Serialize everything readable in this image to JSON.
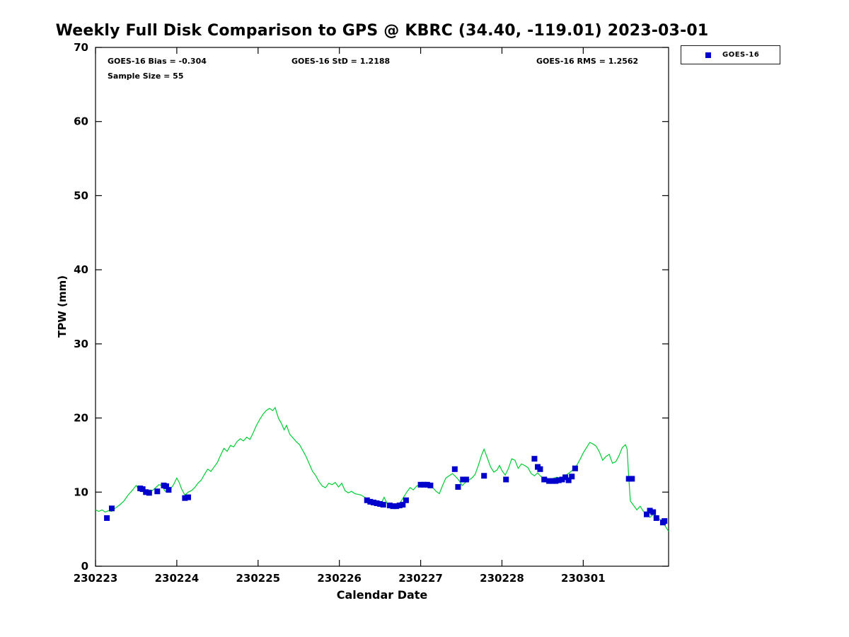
{
  "annotations": {
    "bias": "GOES-16 Bias = -0.304",
    "std": "GOES-16 StD = 1.2188",
    "rms": "GOES-16 RMS = 1.2562",
    "sample_size": "Sample Size = 55"
  },
  "legend": {
    "entries": [
      {
        "label": "GOES-16",
        "marker": "square",
        "color": "#0000cc"
      }
    ]
  },
  "chart_data": {
    "type": "line",
    "title": "Weekly Full Disk Comparison to GPS @ KBRC (34.40, -119.01) 2023-03-01",
    "xlabel": "Calendar Date",
    "ylabel": "TPW (mm)",
    "xlim": [
      0,
      7.05
    ],
    "ylim": [
      0,
      70
    ],
    "x_axis_unit": "days since 230223",
    "grid": false,
    "legend_position": "outside-top-right",
    "x_ticks": [
      {
        "value": 0,
        "label": "230223"
      },
      {
        "value": 1,
        "label": "230224"
      },
      {
        "value": 2,
        "label": "230225"
      },
      {
        "value": 3,
        "label": "230226"
      },
      {
        "value": 4,
        "label": "230227"
      },
      {
        "value": 5,
        "label": "230228"
      },
      {
        "value": 6,
        "label": "230301"
      }
    ],
    "y_ticks": [
      0,
      10,
      20,
      30,
      40,
      50,
      60,
      70
    ],
    "stats": {
      "bias": -0.304,
      "std": 1.2188,
      "rms": 1.2562,
      "sample_size": 55
    },
    "series": [
      {
        "name": "GPS",
        "type": "line",
        "color": "#00cc33",
        "points": [
          [
            0.0,
            7.6
          ],
          [
            0.04,
            7.4
          ],
          [
            0.08,
            7.6
          ],
          [
            0.12,
            7.3
          ],
          [
            0.16,
            7.5
          ],
          [
            0.2,
            7.4
          ],
          [
            0.25,
            7.9
          ],
          [
            0.3,
            8.3
          ],
          [
            0.35,
            8.8
          ],
          [
            0.4,
            9.6
          ],
          [
            0.45,
            10.2
          ],
          [
            0.5,
            10.9
          ],
          [
            0.53,
            10.4
          ],
          [
            0.56,
            10.1
          ],
          [
            0.6,
            10.5
          ],
          [
            0.63,
            10.0
          ],
          [
            0.67,
            10.3
          ],
          [
            0.7,
            10.2
          ],
          [
            0.74,
            10.6
          ],
          [
            0.78,
            11.0
          ],
          [
            0.82,
            10.9
          ],
          [
            0.85,
            10.2
          ],
          [
            0.88,
            10.0
          ],
          [
            0.92,
            10.4
          ],
          [
            0.96,
            11.0
          ],
          [
            1.0,
            11.9
          ],
          [
            1.03,
            11.3
          ],
          [
            1.06,
            10.4
          ],
          [
            1.1,
            9.6
          ],
          [
            1.14,
            10.0
          ],
          [
            1.18,
            10.2
          ],
          [
            1.22,
            10.6
          ],
          [
            1.26,
            11.2
          ],
          [
            1.3,
            11.6
          ],
          [
            1.34,
            12.4
          ],
          [
            1.38,
            13.1
          ],
          [
            1.42,
            12.8
          ],
          [
            1.46,
            13.4
          ],
          [
            1.5,
            14.0
          ],
          [
            1.54,
            15.0
          ],
          [
            1.58,
            15.9
          ],
          [
            1.62,
            15.5
          ],
          [
            1.66,
            16.3
          ],
          [
            1.7,
            16.1
          ],
          [
            1.74,
            16.8
          ],
          [
            1.78,
            17.2
          ],
          [
            1.82,
            16.9
          ],
          [
            1.86,
            17.4
          ],
          [
            1.9,
            17.1
          ],
          [
            1.94,
            18.0
          ],
          [
            1.98,
            19.0
          ],
          [
            2.02,
            19.8
          ],
          [
            2.06,
            20.5
          ],
          [
            2.1,
            21.0
          ],
          [
            2.14,
            21.3
          ],
          [
            2.18,
            21.0
          ],
          [
            2.21,
            21.4
          ],
          [
            2.25,
            20.0
          ],
          [
            2.29,
            19.2
          ],
          [
            2.32,
            18.4
          ],
          [
            2.35,
            19.0
          ],
          [
            2.39,
            17.8
          ],
          [
            2.43,
            17.3
          ],
          [
            2.47,
            16.8
          ],
          [
            2.51,
            16.4
          ],
          [
            2.55,
            15.6
          ],
          [
            2.59,
            14.8
          ],
          [
            2.63,
            13.8
          ],
          [
            2.67,
            12.8
          ],
          [
            2.71,
            12.2
          ],
          [
            2.75,
            11.4
          ],
          [
            2.79,
            10.8
          ],
          [
            2.83,
            10.6
          ],
          [
            2.87,
            11.2
          ],
          [
            2.91,
            11.0
          ],
          [
            2.95,
            11.3
          ],
          [
            2.99,
            10.7
          ],
          [
            3.03,
            11.2
          ],
          [
            3.07,
            10.2
          ],
          [
            3.11,
            9.9
          ],
          [
            3.15,
            10.1
          ],
          [
            3.19,
            9.8
          ],
          [
            3.23,
            9.7
          ],
          [
            3.27,
            9.6
          ],
          [
            3.31,
            9.3
          ],
          [
            3.35,
            9.1
          ],
          [
            3.39,
            8.9
          ],
          [
            3.43,
            8.7
          ],
          [
            3.47,
            8.6
          ],
          [
            3.51,
            8.4
          ],
          [
            3.55,
            9.3
          ],
          [
            3.59,
            8.4
          ],
          [
            3.63,
            8.2
          ],
          [
            3.67,
            8.1
          ],
          [
            3.71,
            8.2
          ],
          [
            3.75,
            8.6
          ],
          [
            3.79,
            9.3
          ],
          [
            3.83,
            10.0
          ],
          [
            3.87,
            10.6
          ],
          [
            3.91,
            10.3
          ],
          [
            3.95,
            10.8
          ],
          [
            3.99,
            11.0
          ],
          [
            4.03,
            11.2
          ],
          [
            4.07,
            10.8
          ],
          [
            4.11,
            11.1
          ],
          [
            4.15,
            10.6
          ],
          [
            4.19,
            10.1
          ],
          [
            4.23,
            9.8
          ],
          [
            4.27,
            10.9
          ],
          [
            4.31,
            11.9
          ],
          [
            4.35,
            12.2
          ],
          [
            4.39,
            12.5
          ],
          [
            4.43,
            12.1
          ],
          [
            4.47,
            11.6
          ],
          [
            4.51,
            10.9
          ],
          [
            4.55,
            11.3
          ],
          [
            4.59,
            11.6
          ],
          [
            4.63,
            11.9
          ],
          [
            4.67,
            12.4
          ],
          [
            4.71,
            13.6
          ],
          [
            4.75,
            15.0
          ],
          [
            4.78,
            15.8
          ],
          [
            4.82,
            14.6
          ],
          [
            4.86,
            13.4
          ],
          [
            4.9,
            12.7
          ],
          [
            4.94,
            13.0
          ],
          [
            4.97,
            13.6
          ],
          [
            5.0,
            12.9
          ],
          [
            5.04,
            12.3
          ],
          [
            5.08,
            13.2
          ],
          [
            5.12,
            14.5
          ],
          [
            5.16,
            14.3
          ],
          [
            5.2,
            13.2
          ],
          [
            5.24,
            13.8
          ],
          [
            5.28,
            13.6
          ],
          [
            5.32,
            13.3
          ],
          [
            5.36,
            12.5
          ],
          [
            5.4,
            12.2
          ],
          [
            5.44,
            12.6
          ],
          [
            5.48,
            12.1
          ],
          [
            5.52,
            11.9
          ],
          [
            5.56,
            11.8
          ],
          [
            5.6,
            11.7
          ],
          [
            5.64,
            11.9
          ],
          [
            5.68,
            12.0
          ],
          [
            5.72,
            11.8
          ],
          [
            5.76,
            12.1
          ],
          [
            5.8,
            12.4
          ],
          [
            5.84,
            12.7
          ],
          [
            5.88,
            13.1
          ],
          [
            5.92,
            13.6
          ],
          [
            5.96,
            14.4
          ],
          [
            6.0,
            15.3
          ],
          [
            6.04,
            16.0
          ],
          [
            6.08,
            16.7
          ],
          [
            6.12,
            16.5
          ],
          [
            6.16,
            16.2
          ],
          [
            6.2,
            15.4
          ],
          [
            6.24,
            14.3
          ],
          [
            6.28,
            14.8
          ],
          [
            6.32,
            15.1
          ],
          [
            6.36,
            13.9
          ],
          [
            6.4,
            14.1
          ],
          [
            6.44,
            14.9
          ],
          [
            6.48,
            16.0
          ],
          [
            6.52,
            16.4
          ],
          [
            6.54,
            15.8
          ],
          [
            6.56,
            12.0
          ],
          [
            6.58,
            8.8
          ],
          [
            6.62,
            8.2
          ],
          [
            6.66,
            7.6
          ],
          [
            6.7,
            8.1
          ],
          [
            6.74,
            7.4
          ],
          [
            6.78,
            6.9
          ],
          [
            6.82,
            6.6
          ],
          [
            6.86,
            7.0
          ],
          [
            6.9,
            6.8
          ],
          [
            6.94,
            6.3
          ],
          [
            6.98,
            6.1
          ],
          [
            7.0,
            5.6
          ],
          [
            7.02,
            5.2
          ],
          [
            7.05,
            4.7
          ]
        ]
      },
      {
        "name": "GOES-16",
        "type": "scatter",
        "marker": "square",
        "color": "#0000cc",
        "points": [
          [
            0.14,
            6.5
          ],
          [
            0.2,
            7.8
          ],
          [
            0.55,
            10.5
          ],
          [
            0.58,
            10.4
          ],
          [
            0.62,
            10.0
          ],
          [
            0.66,
            9.9
          ],
          [
            0.76,
            10.1
          ],
          [
            0.84,
            10.9
          ],
          [
            0.87,
            10.8
          ],
          [
            0.9,
            10.3
          ],
          [
            1.1,
            9.2
          ],
          [
            1.14,
            9.3
          ],
          [
            3.34,
            8.9
          ],
          [
            3.38,
            8.7
          ],
          [
            3.42,
            8.6
          ],
          [
            3.46,
            8.5
          ],
          [
            3.5,
            8.4
          ],
          [
            3.54,
            8.3
          ],
          [
            3.62,
            8.2
          ],
          [
            3.66,
            8.1
          ],
          [
            3.7,
            8.1
          ],
          [
            3.74,
            8.2
          ],
          [
            3.78,
            8.3
          ],
          [
            3.82,
            8.9
          ],
          [
            4.0,
            11.0
          ],
          [
            4.04,
            11.0
          ],
          [
            4.08,
            11.0
          ],
          [
            4.12,
            10.9
          ],
          [
            4.42,
            13.1
          ],
          [
            4.46,
            10.7
          ],
          [
            4.52,
            11.7
          ],
          [
            4.56,
            11.7
          ],
          [
            4.78,
            12.2
          ],
          [
            5.05,
            11.7
          ],
          [
            5.4,
            14.5
          ],
          [
            5.44,
            13.4
          ],
          [
            5.47,
            13.1
          ],
          [
            5.52,
            11.7
          ],
          [
            5.58,
            11.5
          ],
          [
            5.62,
            11.5
          ],
          [
            5.66,
            11.5
          ],
          [
            5.7,
            11.6
          ],
          [
            5.74,
            11.7
          ],
          [
            5.78,
            12.0
          ],
          [
            5.82,
            11.6
          ],
          [
            5.86,
            12.1
          ],
          [
            5.9,
            13.2
          ],
          [
            6.56,
            11.8
          ],
          [
            6.6,
            11.8
          ],
          [
            6.78,
            7.0
          ],
          [
            6.82,
            7.5
          ],
          [
            6.86,
            7.3
          ],
          [
            6.9,
            6.5
          ],
          [
            6.98,
            5.9
          ],
          [
            7.0,
            6.1
          ]
        ]
      }
    ]
  }
}
